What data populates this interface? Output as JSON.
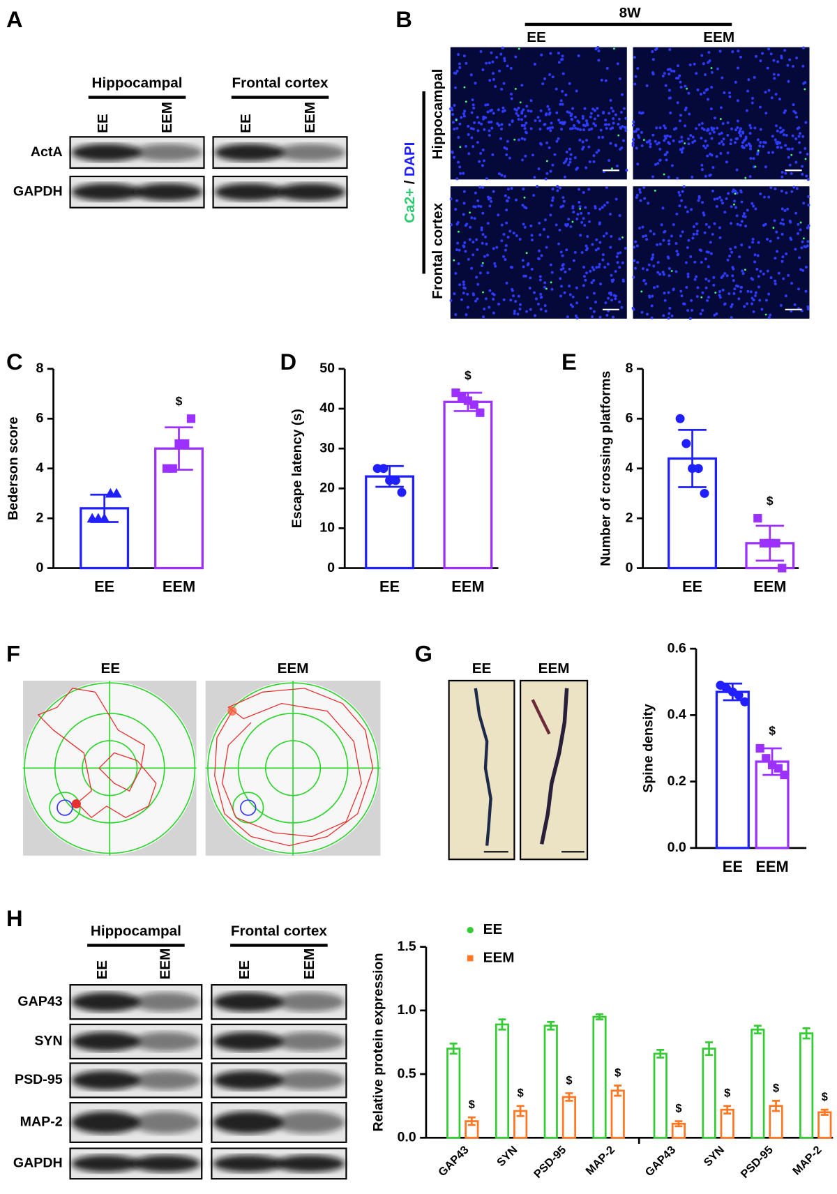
{
  "panel_labels": [
    "A",
    "B",
    "C",
    "D",
    "E",
    "F",
    "G",
    "H"
  ],
  "blot_a": {
    "groups": [
      "Hippocampal",
      "Frontal cortex"
    ],
    "lanes": [
      "EE",
      "EEM",
      "EE",
      "EEM"
    ],
    "rows": [
      "ActA",
      "GAPDH"
    ]
  },
  "image_b": {
    "title": "8W",
    "columns": [
      "EE",
      "EEM"
    ],
    "rows": [
      "Hippocampal",
      "Frontal cortex"
    ],
    "stain": [
      "Ca2+",
      "/",
      "DAPI"
    ]
  },
  "images_f": {
    "columns": [
      "EE",
      "EEM"
    ]
  },
  "images_g": {
    "columns": [
      "EE",
      "EEM"
    ]
  },
  "blot_h": {
    "groups": [
      "Hippocampal",
      "Frontal cortex"
    ],
    "lanes": [
      "EE",
      "EEM",
      "EE",
      "EEM"
    ],
    "rows": [
      "GAP43",
      "SYN",
      "PSD-95",
      "MAP-2",
      "GAPDH"
    ]
  },
  "chart_data": [
    {
      "type": "bar",
      "y_label": "Bederson score",
      "categories": [
        "EE",
        "EEM"
      ],
      "values": [
        2.4,
        4.8
      ],
      "errors": [
        0.55,
        0.85
      ],
      "colors": [
        "#1f1fff",
        "#9b30ff"
      ],
      "markers": [
        "triangle",
        "square"
      ],
      "points": [
        [
          2,
          2,
          2,
          3,
          3
        ],
        [
          4,
          4,
          5,
          5,
          6
        ]
      ],
      "annotations": [
        null,
        "$"
      ],
      "ylim": [
        0,
        8
      ],
      "yticks": [
        0,
        2,
        4,
        6,
        8
      ]
    },
    {
      "type": "bar",
      "y_label": "Escape latency (s)",
      "categories": [
        "EE",
        "EEM"
      ],
      "values": [
        23,
        41.7
      ],
      "errors": [
        2.6,
        2.3
      ],
      "colors": [
        "#1f1fff",
        "#9b30ff"
      ],
      "markers": [
        "circle",
        "square"
      ],
      "points": [
        [
          25,
          25,
          22,
          22,
          19
        ],
        [
          44,
          43,
          42,
          41,
          39
        ]
      ],
      "annotations": [
        null,
        "$"
      ],
      "ylim": [
        0,
        50
      ],
      "yticks": [
        0,
        10,
        20,
        30,
        40,
        50
      ]
    },
    {
      "type": "bar",
      "y_label": "Number of crossing platforms",
      "categories": [
        "EE",
        "EEM"
      ],
      "values": [
        4.4,
        1.0
      ],
      "errors": [
        1.15,
        0.7
      ],
      "colors": [
        "#1f1fff",
        "#9b30ff"
      ],
      "markers": [
        "circle",
        "square"
      ],
      "points": [
        [
          6,
          5,
          4,
          4,
          3
        ],
        [
          2,
          1,
          1,
          1,
          0
        ]
      ],
      "annotations": [
        null,
        "$"
      ],
      "ylim": [
        0,
        8
      ],
      "yticks": [
        0,
        2,
        4,
        6,
        8
      ]
    },
    {
      "type": "bar",
      "y_label": "Spine density",
      "categories": [
        "EE",
        "EEM"
      ],
      "values": [
        0.47,
        0.26
      ],
      "errors": [
        0.025,
        0.04
      ],
      "colors": [
        "#1f1fff",
        "#9b30ff"
      ],
      "markers": [
        "circle",
        "square"
      ],
      "points": [
        [
          0.49,
          0.48,
          0.47,
          0.46,
          0.44
        ],
        [
          0.3,
          0.27,
          0.25,
          0.24,
          0.22
        ]
      ],
      "annotations": [
        null,
        "$"
      ],
      "ylim": [
        0,
        0.6
      ],
      "yticks": [
        {
          "value": 0,
          "label": "0.0"
        },
        0.2,
        0.4,
        0.6
      ]
    },
    {
      "type": "grouped_bar",
      "y_label": "Relative protein expression",
      "categories": [
        "GAP43",
        "SYN",
        "PSD-95",
        "MAP-2",
        "GAP43",
        "SYN",
        "PSD-95",
        "MAP-2"
      ],
      "series": [
        {
          "name": "EE",
          "color": "#33cc33",
          "marker": "circle",
          "values": [
            0.7,
            0.89,
            0.88,
            0.95,
            0.66,
            0.7,
            0.85,
            0.82
          ],
          "errors": [
            0.04,
            0.04,
            0.03,
            0.02,
            0.03,
            0.05,
            0.03,
            0.04
          ]
        },
        {
          "name": "EEM",
          "color": "#ff7722",
          "marker": "square",
          "values": [
            0.13,
            0.21,
            0.32,
            0.37,
            0.11,
            0.22,
            0.25,
            0.2
          ],
          "errors": [
            0.03,
            0.04,
            0.03,
            0.04,
            0.02,
            0.03,
            0.04,
            0.02
          ],
          "annotations": [
            "$",
            "$",
            "$",
            "$",
            "$",
            "$",
            "$",
            "$"
          ]
        }
      ],
      "ylim": [
        0,
        1.5
      ],
      "yticks": [
        {
          "value": 0,
          "label": "0.0"
        },
        0.5,
        {
          "value": 1,
          "label": "1.0"
        },
        1.5
      ]
    }
  ]
}
